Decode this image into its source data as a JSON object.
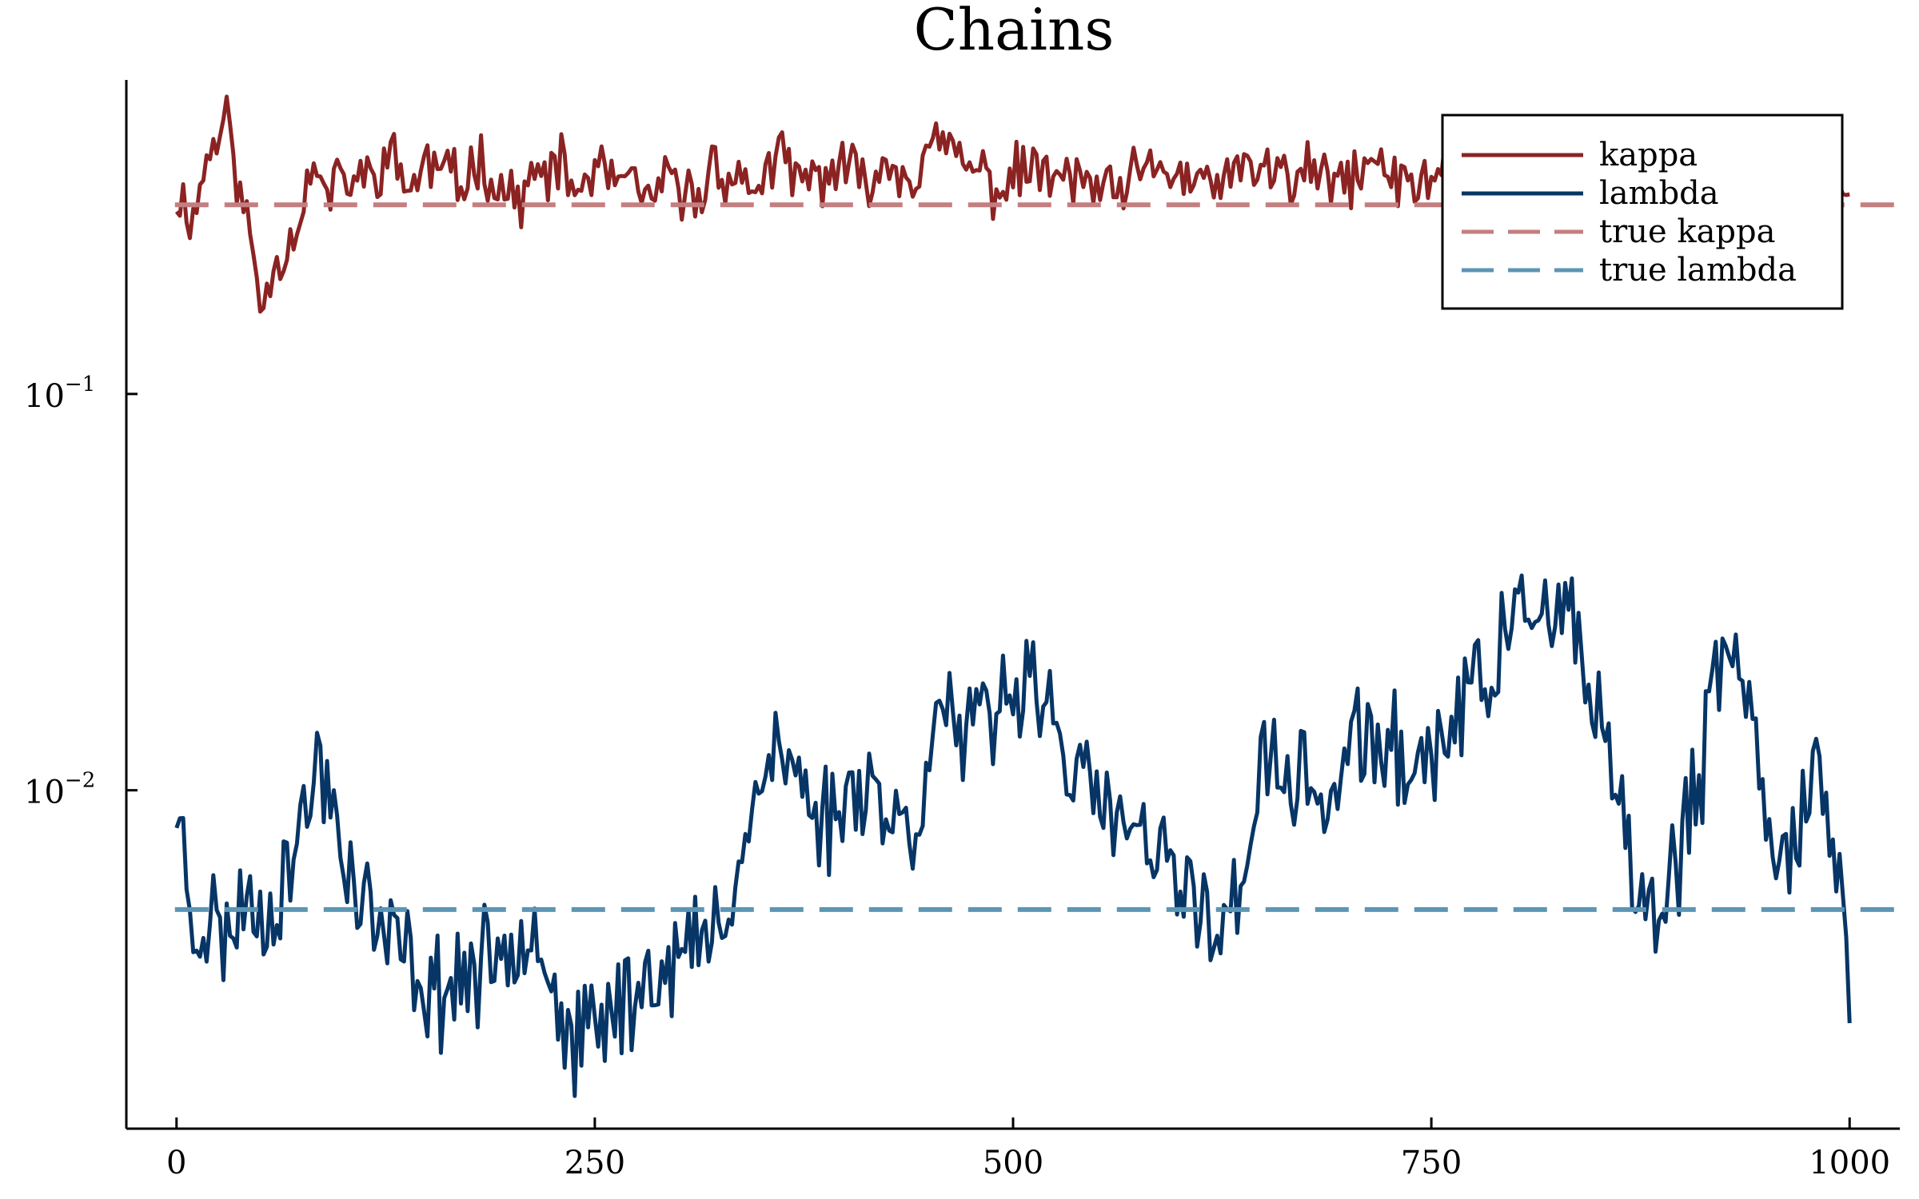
{
  "chart_data": {
    "type": "line",
    "title": "Chains",
    "xlabel": "",
    "ylabel": "",
    "xlim": [
      -30,
      1030
    ],
    "ylim": [
      0.0014,
      0.62
    ],
    "yscale": "log",
    "grid": false,
    "legend_position": "top-right",
    "x_ticks": [
      0,
      250,
      500,
      750,
      1000
    ],
    "x_tick_labels": [
      "0",
      "250",
      "500",
      "750",
      "1000"
    ],
    "y_ticks": [
      {
        "value": 0.1,
        "base": "10",
        "exponent": "−1"
      },
      {
        "value": 0.01,
        "base": "10",
        "exponent": "−2"
      }
    ],
    "series": [
      {
        "name": "kappa",
        "color": "#8b2323",
        "style": "solid",
        "points": [
          [
            0,
            0.32
          ],
          [
            10,
            0.28
          ],
          [
            20,
            0.42
          ],
          [
            30,
            0.5
          ],
          [
            40,
            0.29
          ],
          [
            45,
            0.24
          ],
          [
            50,
            0.17
          ],
          [
            55,
            0.19
          ],
          [
            60,
            0.22
          ],
          [
            70,
            0.25
          ],
          [
            80,
            0.37
          ],
          [
            90,
            0.32
          ],
          [
            100,
            0.35
          ],
          [
            110,
            0.34
          ],
          [
            120,
            0.38
          ],
          [
            130,
            0.39
          ],
          [
            140,
            0.33
          ],
          [
            150,
            0.38
          ],
          [
            160,
            0.37
          ],
          [
            170,
            0.33
          ],
          [
            180,
            0.4
          ],
          [
            190,
            0.35
          ],
          [
            200,
            0.31
          ],
          [
            210,
            0.33
          ],
          [
            220,
            0.36
          ],
          [
            230,
            0.37
          ],
          [
            240,
            0.32
          ],
          [
            250,
            0.37
          ],
          [
            260,
            0.35
          ],
          [
            270,
            0.33
          ],
          [
            280,
            0.31
          ],
          [
            290,
            0.33
          ],
          [
            300,
            0.34
          ],
          [
            310,
            0.3
          ],
          [
            320,
            0.38
          ],
          [
            330,
            0.36
          ],
          [
            340,
            0.33
          ],
          [
            350,
            0.35
          ],
          [
            360,
            0.39
          ],
          [
            370,
            0.35
          ],
          [
            380,
            0.34
          ],
          [
            390,
            0.37
          ],
          [
            400,
            0.36
          ],
          [
            410,
            0.35
          ],
          [
            420,
            0.37
          ],
          [
            430,
            0.38
          ],
          [
            440,
            0.36
          ],
          [
            450,
            0.4
          ],
          [
            460,
            0.43
          ],
          [
            470,
            0.38
          ],
          [
            480,
            0.36
          ],
          [
            490,
            0.33
          ],
          [
            500,
            0.35
          ],
          [
            510,
            0.37
          ],
          [
            520,
            0.36
          ],
          [
            530,
            0.34
          ],
          [
            540,
            0.35
          ],
          [
            550,
            0.33
          ],
          [
            560,
            0.31
          ],
          [
            570,
            0.34
          ],
          [
            580,
            0.36
          ],
          [
            590,
            0.37
          ],
          [
            600,
            0.36
          ],
          [
            610,
            0.33
          ],
          [
            620,
            0.34
          ],
          [
            630,
            0.36
          ],
          [
            640,
            0.35
          ],
          [
            650,
            0.38
          ],
          [
            660,
            0.36
          ],
          [
            670,
            0.34
          ],
          [
            680,
            0.37
          ],
          [
            690,
            0.33
          ],
          [
            700,
            0.35
          ],
          [
            710,
            0.37
          ],
          [
            720,
            0.38
          ],
          [
            730,
            0.34
          ],
          [
            740,
            0.33
          ],
          [
            750,
            0.36
          ],
          [
            760,
            0.38
          ],
          [
            770,
            0.4
          ],
          [
            780,
            0.35
          ],
          [
            790,
            0.37
          ],
          [
            800,
            0.4
          ],
          [
            810,
            0.37
          ],
          [
            820,
            0.38
          ],
          [
            830,
            0.36
          ],
          [
            840,
            0.38
          ],
          [
            850,
            0.37
          ],
          [
            860,
            0.36
          ],
          [
            870,
            0.35
          ],
          [
            880,
            0.37
          ],
          [
            890,
            0.36
          ],
          [
            900,
            0.34
          ],
          [
            910,
            0.35
          ],
          [
            920,
            0.37
          ],
          [
            930,
            0.34
          ],
          [
            940,
            0.33
          ],
          [
            950,
            0.19
          ],
          [
            960,
            0.3
          ],
          [
            970,
            0.33
          ],
          [
            980,
            0.35
          ],
          [
            990,
            0.34
          ],
          [
            1000,
            0.36
          ]
        ],
        "noise": 0.14,
        "seed": 11
      },
      {
        "name": "lambda",
        "color": "#063566",
        "style": "solid",
        "points": [
          [
            0,
            0.0095
          ],
          [
            5,
            0.0065
          ],
          [
            10,
            0.0045
          ],
          [
            20,
            0.0048
          ],
          [
            30,
            0.0042
          ],
          [
            40,
            0.0055
          ],
          [
            50,
            0.0048
          ],
          [
            60,
            0.0055
          ],
          [
            70,
            0.007
          ],
          [
            80,
            0.0095
          ],
          [
            85,
            0.012
          ],
          [
            90,
            0.0105
          ],
          [
            100,
            0.007
          ],
          [
            110,
            0.0055
          ],
          [
            120,
            0.0045
          ],
          [
            130,
            0.004
          ],
          [
            140,
            0.0037
          ],
          [
            150,
            0.0032
          ],
          [
            160,
            0.0031
          ],
          [
            170,
            0.0035
          ],
          [
            180,
            0.0034
          ],
          [
            190,
            0.0038
          ],
          [
            200,
            0.0042
          ],
          [
            210,
            0.005
          ],
          [
            220,
            0.004
          ],
          [
            230,
            0.0026
          ],
          [
            240,
            0.0022
          ],
          [
            250,
            0.0025
          ],
          [
            260,
            0.0028
          ],
          [
            270,
            0.003
          ],
          [
            280,
            0.0033
          ],
          [
            290,
            0.0036
          ],
          [
            300,
            0.0038
          ],
          [
            310,
            0.004
          ],
          [
            320,
            0.0042
          ],
          [
            330,
            0.0055
          ],
          [
            340,
            0.0075
          ],
          [
            350,
            0.0115
          ],
          [
            360,
            0.0125
          ],
          [
            370,
            0.0108
          ],
          [
            380,
            0.0092
          ],
          [
            390,
            0.0085
          ],
          [
            400,
            0.0095
          ],
          [
            410,
            0.0112
          ],
          [
            420,
            0.0098
          ],
          [
            430,
            0.0082
          ],
          [
            440,
            0.0078
          ],
          [
            450,
            0.0135
          ],
          [
            460,
            0.0165
          ],
          [
            470,
            0.0128
          ],
          [
            480,
            0.0145
          ],
          [
            490,
            0.0152
          ],
          [
            500,
            0.0175
          ],
          [
            510,
            0.022
          ],
          [
            520,
            0.017
          ],
          [
            530,
            0.0125
          ],
          [
            540,
            0.0105
          ],
          [
            550,
            0.0092
          ],
          [
            560,
            0.0085
          ],
          [
            570,
            0.0078
          ],
          [
            580,
            0.007
          ],
          [
            590,
            0.0065
          ],
          [
            600,
            0.0055
          ],
          [
            610,
            0.0052
          ],
          [
            620,
            0.0048
          ],
          [
            630,
            0.0045
          ],
          [
            640,
            0.0075
          ],
          [
            650,
            0.0115
          ],
          [
            660,
            0.0108
          ],
          [
            670,
            0.0105
          ],
          [
            680,
            0.0098
          ],
          [
            690,
            0.0095
          ],
          [
            700,
            0.012
          ],
          [
            710,
            0.0138
          ],
          [
            720,
            0.0128
          ],
          [
            730,
            0.0122
          ],
          [
            740,
            0.0116
          ],
          [
            750,
            0.0122
          ],
          [
            760,
            0.0145
          ],
          [
            770,
            0.0168
          ],
          [
            780,
            0.018
          ],
          [
            790,
            0.022
          ],
          [
            800,
            0.0265
          ],
          [
            810,
            0.032
          ],
          [
            820,
            0.0245
          ],
          [
            830,
            0.0265
          ],
          [
            840,
            0.0215
          ],
          [
            850,
            0.0145
          ],
          [
            860,
            0.0092
          ],
          [
            870,
            0.0062
          ],
          [
            880,
            0.0048
          ],
          [
            890,
            0.0052
          ],
          [
            900,
            0.0072
          ],
          [
            910,
            0.0105
          ],
          [
            920,
            0.0182
          ],
          [
            930,
            0.0225
          ],
          [
            940,
            0.0158
          ],
          [
            950,
            0.0095
          ],
          [
            960,
            0.0068
          ],
          [
            970,
            0.0082
          ],
          [
            980,
            0.0125
          ],
          [
            990,
            0.0065
          ],
          [
            1000,
            0.0035
          ]
        ],
        "noise": 0.26,
        "seed": 23
      },
      {
        "name": "true kappa",
        "color": "#c47e80",
        "style": "dashed",
        "points": [
          [
            0,
            0.3
          ],
          [
            1030,
            0.3
          ]
        ]
      },
      {
        "name": "true lambda",
        "color": "#5c95b5",
        "style": "dashed",
        "points": [
          [
            0,
            0.005
          ],
          [
            1030,
            0.005
          ]
        ]
      }
    ]
  }
}
